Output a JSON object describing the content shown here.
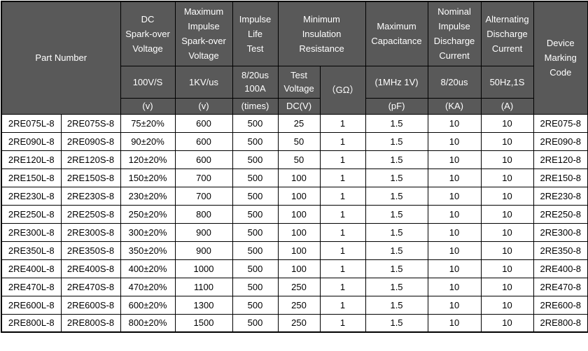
{
  "table": {
    "header": {
      "part_number": "Part Number",
      "device_marking": "Device\nMarking\nCode",
      "groups": [
        {
          "title": "DC\nSpark-over\nVoltage",
          "condition": "100V/S",
          "unit": "(v)"
        },
        {
          "title": "Maximum\nImpulse\nSpark-over\nVoltage",
          "condition": "1KV/us",
          "unit": "(v)"
        },
        {
          "title": "Impulse\nLife\nTest",
          "condition": "8/20us\n100A",
          "unit": "(times)"
        },
        {
          "title": "Minimum\nInsulation\nResistance",
          "condition": "Test\nVoltage",
          "unit": "DC(V)",
          "condition2": "（GΩ）"
        },
        {
          "title": "Maximum\nCapacitance",
          "condition": "(1MHz 1V)",
          "unit": "(pF)"
        },
        {
          "title": "Nominal\nImpulse\nDischarge\nCurrent",
          "condition": "8/20us",
          "unit": "(KA)"
        },
        {
          "title": "Alternating\nDischarge\nCurrent",
          "condition": "50Hz,1S",
          "unit": "(A)"
        }
      ]
    },
    "columns": [
      "part-number-l",
      "part-number-s",
      "dc-sparkover-voltage",
      "impulse-sparkover-voltage",
      "impulse-life-test",
      "test-voltage",
      "insulation-resistance-gohm",
      "capacitance-pf",
      "impulse-discharge-ka",
      "alternating-discharge-a",
      "device-marking-code"
    ],
    "rows": [
      [
        "2RE075L-8",
        "2RE075S-8",
        "75±20%",
        "600",
        "500",
        "25",
        "1",
        "1.5",
        "10",
        "10",
        "2RE075-8"
      ],
      [
        "2RE090L-8",
        "2RE090S-8",
        "90±20%",
        "600",
        "500",
        "50",
        "1",
        "1.5",
        "10",
        "10",
        "2RE090-8"
      ],
      [
        "2RE120L-8",
        "2RE120S-8",
        "120±20%",
        "600",
        "500",
        "50",
        "1",
        "1.5",
        "10",
        "10",
        "2RE120-8"
      ],
      [
        "2RE150L-8",
        "2RE150S-8",
        "150±20%",
        "700",
        "500",
        "100",
        "1",
        "1.5",
        "10",
        "10",
        "2RE150-8"
      ],
      [
        "2RE230L-8",
        "2RE230S-8",
        "230±20%",
        "700",
        "500",
        "100",
        "1",
        "1.5",
        "10",
        "10",
        "2RE230-8"
      ],
      [
        "2RE250L-8",
        "2RE250S-8",
        "250±20%",
        "800",
        "500",
        "100",
        "1",
        "1.5",
        "10",
        "10",
        "2RE250-8"
      ],
      [
        "2RE300L-8",
        "2RE300S-8",
        "300±20%",
        "900",
        "500",
        "100",
        "1",
        "1.5",
        "10",
        "10",
        "2RE300-8"
      ],
      [
        "2RE350L-8",
        "2RE350S-8",
        "350±20%",
        "900",
        "500",
        "100",
        "1",
        "1.5",
        "10",
        "10",
        "2RE350-8"
      ],
      [
        "2RE400L-8",
        "2RE400S-8",
        "400±20%",
        "1000",
        "500",
        "100",
        "1",
        "1.5",
        "10",
        "10",
        "2RE400-8"
      ],
      [
        "2RE470L-8",
        "2RE470S-8",
        "470±20%",
        "1100",
        "500",
        "250",
        "1",
        "1.5",
        "10",
        "10",
        "2RE470-8"
      ],
      [
        "2RE600L-8",
        "2RE600S-8",
        "600±20%",
        "1300",
        "500",
        "250",
        "1",
        "1.5",
        "10",
        "10",
        "2RE600-8"
      ],
      [
        "2RE800L-8",
        "2RE800S-8",
        "800±20%",
        "1500",
        "500",
        "250",
        "1",
        "1.5",
        "10",
        "10",
        "2RE800-8"
      ]
    ],
    "colors": {
      "header_bg": "#595959",
      "header_text": "#ffffff",
      "body_bg": "#ffffff",
      "body_text": "#000000",
      "border": "#000000"
    }
  }
}
